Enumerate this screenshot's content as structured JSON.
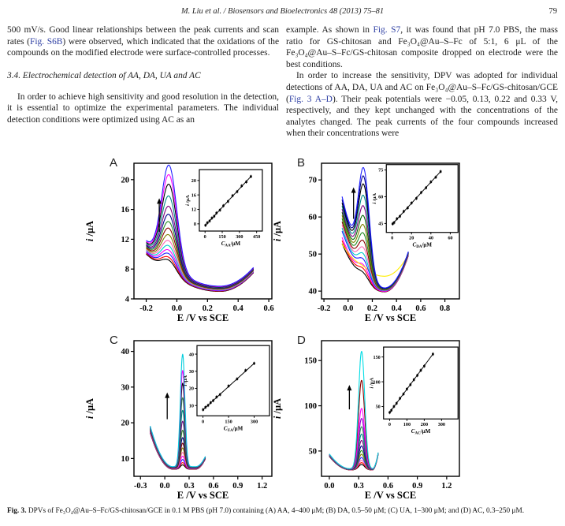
{
  "theme": {
    "link_color": "#2e3fa3",
    "text_color": "#1c1c1c"
  },
  "header": {
    "citation": "M. Liu et al. / Biosensors and Bioelectronics 48 (2013) 75–81",
    "page_number": "79"
  },
  "columns": {
    "left": {
      "para1_segments": [
        {
          "t": "500 mV/s. Good linear relationships between the peak currents and scan rates ("
        },
        {
          "t": "Fig. S6B",
          "link": true
        },
        {
          "t": ") were observed, which indicated that the oxidations of the compounds on the modified electrode were surface-controlled processes."
        }
      ],
      "section_heading": "3.4. Electrochemical detection of AA, DA, UA and AC",
      "para2_segments": [
        {
          "t": "In order to achieve high sensitivity and good resolution in the detection, it is essential to optimize the experimental parameters. The individual detection conditions were optimized using AC as an"
        }
      ]
    },
    "right": {
      "para1_segments": [
        {
          "t": "example. As shown in "
        },
        {
          "t": "Fig. S7",
          "link": true
        },
        {
          "t": ", it was found that pH 7.0 PBS, the mass ratio for GS-chitosan and Fe₃O₄@Au–S–Fc of 5:1, 6 μL of the Fe₃O₄@Au–S–Fc/GS-chitosan composite dropped on electrode were the best conditions."
        }
      ],
      "para2_segments": [
        {
          "t": "In order to increase the sensitivity, DPV was adopted for individual detections of AA, DA, UA and AC on Fe₃O₄@Au–S–Fc/GS-chitosan/GCE ("
        },
        {
          "t": "Fig. 3 A–D",
          "link": true
        },
        {
          "t": "). Their peak potentials were −0.05, 0.13, 0.22 and 0.33 V, respectively, and they kept unchanged with the concentrations of the analytes changed. The peak currents of the four compounds increased when their concentrations were"
        }
      ]
    }
  },
  "figure": {
    "caption_label": "Fig. 3.",
    "caption_text": " DPVs of Fe₃O₄@Au–S–Fc/GS-chitosan/GCE in 0.1 M PBS (pH 7.0) containing (A) AA, 4–400 μM; (B) DA, 0.5–50 μM; (C) UA, 1–300 μM; and (D) AC, 0.3–250 μM."
  },
  "chart_data": [
    {
      "type": "line",
      "panel": "A",
      "analyte": "AA",
      "title": "DPV of AA 4–400 μM",
      "xlabel": "E /V vs SCE",
      "ylabel_main": "i",
      "ylabel_rest": " /μA",
      "x_range": [
        -0.28,
        0.62
      ],
      "y_range": [
        4,
        22.2
      ],
      "x_ticks": [
        -0.2,
        0.0,
        0.2,
        0.4,
        0.6
      ],
      "x_tick_labels": [
        "-0.2",
        "0.0",
        "0.2",
        "0.4",
        "0.6"
      ],
      "y_ticks": [
        4,
        8,
        12,
        16,
        20
      ],
      "y_tick_labels": [
        "4",
        "8",
        "12",
        "16",
        "20"
      ],
      "peak_potential_V": -0.05,
      "peak_sigma": 0.05,
      "curve_E_range": [
        -0.2,
        0.5
      ],
      "baseline": {
        "valley_E": 0.28,
        "valley_i": 5.0,
        "valley_step": 0.05,
        "left_coef": 21.7,
        "left_spread": 0.2,
        "right_start_E": 0.28,
        "right_coef": 52
      },
      "curves": [
        {
          "amp": 1.8,
          "color": "#000000"
        },
        {
          "amp": 2.1,
          "color": "#ff0000"
        },
        {
          "amp": 2.5,
          "color": "#1e1eff"
        },
        {
          "amp": 2.9,
          "color": "#ff00ff"
        },
        {
          "amp": 3.4,
          "color": "#00cccc"
        },
        {
          "amp": 4.0,
          "color": "#ff69b4"
        },
        {
          "amp": 4.7,
          "color": "#808000"
        },
        {
          "amp": 5.5,
          "color": "#8b0000"
        },
        {
          "amp": 6.3,
          "color": "#228b22"
        },
        {
          "amp": 7.2,
          "color": "#00008b"
        },
        {
          "amp": 8.2,
          "color": "#800080"
        },
        {
          "amp": 9.5,
          "color": "#008b8b"
        },
        {
          "amp": 11.0,
          "color": "#000000"
        },
        {
          "amp": 12.2,
          "color": "#ff00ff"
        },
        {
          "amp": 13.4,
          "color": "#2222ff"
        }
      ],
      "arrow": {
        "E": -0.115,
        "i_from": 13.0,
        "i_to": 17.5
      },
      "inset": {
        "xlabel_sym": "C",
        "xlabel_sub": "AA",
        "xlabel_unit": "/μM",
        "ylabel_main": "i",
        "ylabel_rest": " /μA",
        "x_range": [
          -50,
          500
        ],
        "y_range": [
          6,
          23
        ],
        "x_ticks": [
          0,
          150,
          300,
          450
        ],
        "x_tick_labels": [
          "0",
          "150",
          "300",
          "450"
        ],
        "y_ticks": [
          8,
          12,
          16,
          20
        ],
        "y_tick_labels": [
          "8",
          "12",
          "16",
          "20"
        ],
        "points_x": [
          4,
          20,
          40,
          60,
          80,
          100,
          130,
          160,
          200,
          240,
          280,
          320,
          360,
          400
        ],
        "points_y": [
          7.6,
          8.3,
          8.8,
          9.6,
          10.1,
          11.0,
          11.8,
          13.0,
          14.2,
          15.8,
          16.9,
          18.5,
          19.6,
          21.1
        ],
        "box": [
          0.474,
          0.047,
          0.457,
          0.453
        ]
      }
    },
    {
      "type": "line",
      "panel": "B",
      "analyte": "DA",
      "title": "DPV of DA 0.5–50 μM",
      "xlabel": "E /V vs SCE",
      "ylabel_main": "i",
      "ylabel_rest": " /μA",
      "x_range": [
        -0.22,
        0.92
      ],
      "y_range": [
        37.9,
        74.5
      ],
      "x_ticks": [
        -0.2,
        0.0,
        0.2,
        0.4,
        0.6,
        0.8
      ],
      "x_tick_labels": [
        "-0.2",
        "0.0",
        "0.2",
        "0.4",
        "0.6",
        "0.8"
      ],
      "y_ticks": [
        40,
        50,
        60,
        70
      ],
      "y_tick_labels": [
        "40",
        "50",
        "60",
        "70"
      ],
      "peak_potential_V": 0.13,
      "peak_sigma": 0.045,
      "curve_E_range": [
        -0.05,
        0.5
      ],
      "baseline": {
        "valley_E": 0.3,
        "valley_i": 39.8,
        "valley_step": 0.07,
        "left_coef": 106,
        "left_spread": 0.9,
        "right_start_E": 0.3,
        "right_coef": 250
      },
      "curves": [
        {
          "amp": 2.0,
          "color": "#000000"
        },
        {
          "amp": 2.8,
          "color": "#ff0000"
        },
        {
          "amp": 3.6,
          "color": "#ff00ff"
        },
        {
          "amp": 0.6,
          "color": "#ffee00",
          "valley_i": 43.8,
          "left_coef": 60,
          "right_coef": 150
        },
        {
          "amp": 4.6,
          "color": "#1e1eff"
        },
        {
          "amp": 5.8,
          "color": "#00cccc"
        },
        {
          "amp": 7.2,
          "color": "#ff69b4"
        },
        {
          "amp": 8.8,
          "color": "#8b0000"
        },
        {
          "amp": 10.6,
          "color": "#228b22"
        },
        {
          "amp": 12.6,
          "color": "#808000"
        },
        {
          "amp": 14.8,
          "color": "#006400"
        },
        {
          "amp": 17.2,
          "color": "#800080"
        },
        {
          "amp": 19.8,
          "color": "#008b8b"
        },
        {
          "amp": 22.6,
          "color": "#000000"
        },
        {
          "amp": 24.5,
          "color": "#00008b"
        },
        {
          "amp": 26.5,
          "color": "#1e1eff"
        }
      ],
      "arrow": {
        "E": 0.045,
        "i_from": 59.5,
        "i_to": 68.0
      },
      "inset": {
        "xlabel_sym": "C",
        "xlabel_sub": "DA",
        "xlabel_unit": "/μM",
        "ylabel_main": "i",
        "ylabel_rest": " /μA",
        "x_range": [
          -6,
          68
        ],
        "y_range": [
          40,
          78
        ],
        "x_ticks": [
          0,
          20,
          40,
          60
        ],
        "x_tick_labels": [
          "0",
          "20",
          "40",
          "60"
        ],
        "y_ticks": [
          45,
          60,
          75
        ],
        "y_tick_labels": [
          "45",
          "60",
          "75"
        ],
        "points_x": [
          0.5,
          2,
          5,
          8,
          12,
          16,
          20,
          25,
          30,
          35,
          40,
          45,
          50
        ],
        "points_y": [
          44.8,
          45.5,
          47.7,
          49.0,
          51.8,
          53.7,
          56.5,
          59.1,
          62.4,
          65.0,
          68.3,
          70.9,
          74.1
        ],
        "box": [
          0.47,
          0.01,
          0.52,
          0.5
        ]
      }
    },
    {
      "type": "line",
      "panel": "C",
      "analyte": "UA",
      "title": "DPV of UA 1–300 μM",
      "xlabel": "E /V vs SCE",
      "ylabel_main": "i",
      "ylabel_rest": " /μA",
      "x_range": [
        -0.38,
        1.32
      ],
      "y_range": [
        5,
        43
      ],
      "x_ticks": [
        -0.3,
        0.0,
        0.3,
        0.6,
        0.9,
        1.2
      ],
      "x_tick_labels": [
        "-0.3",
        "0.0",
        "0.3",
        "0.6",
        "0.9",
        "1.2"
      ],
      "y_ticks": [
        10,
        20,
        30,
        40
      ],
      "y_tick_labels": [
        "10",
        "20",
        "30",
        "40"
      ],
      "peak_potential_V": 0.22,
      "peak_sigma": 0.028,
      "curve_E_range": [
        -0.18,
        0.5
      ],
      "baseline": {
        "valley_E": 0.1,
        "valley_i": 7.0,
        "valley_step": 0.05,
        "left_coef": 130,
        "left_spread": 0.12,
        "right_start_E": 0.38,
        "right_coef": 200
      },
      "curves": [
        {
          "amp": 1.2,
          "color": "#000000"
        },
        {
          "amp": 1.8,
          "color": "#ff0000"
        },
        {
          "amp": 2.6,
          "color": "#1e1eff"
        },
        {
          "amp": 3.5,
          "color": "#ff00ff"
        },
        {
          "amp": 4.5,
          "color": "#ff69b4"
        },
        {
          "amp": 5.7,
          "color": "#808000"
        },
        {
          "amp": 7.0,
          "color": "#8b0000"
        },
        {
          "amp": 8.5,
          "color": "#00008b"
        },
        {
          "amp": 10.5,
          "color": "#228b22"
        },
        {
          "amp": 13.0,
          "color": "#800080"
        },
        {
          "amp": 16.0,
          "color": "#008b8b"
        },
        {
          "amp": 19.5,
          "color": "#2e8b57"
        },
        {
          "amp": 23.5,
          "color": "#000000"
        },
        {
          "amp": 27.0,
          "color": "#ff00ff"
        },
        {
          "amp": 31.5,
          "color": "#00cddd"
        }
      ],
      "arrow": {
        "E": 0.03,
        "i_from": 21.0,
        "i_to": 28.5
      },
      "inset": {
        "xlabel_sym": "C",
        "xlabel_sub": "UA",
        "xlabel_unit": "/μM",
        "ylabel_main": "i",
        "ylabel_rest": " /μA",
        "x_range": [
          -35,
          390
        ],
        "y_range": [
          4,
          45
        ],
        "x_ticks": [
          0,
          150,
          300
        ],
        "x_tick_labels": [
          "0",
          "150",
          "300"
        ],
        "y_ticks": [
          10,
          20,
          30,
          40
        ],
        "y_tick_labels": [
          "10",
          "20",
          "30",
          "40"
        ],
        "points_x": [
          1,
          15,
          30,
          45,
          60,
          80,
          100,
          150,
          200,
          250,
          300
        ],
        "points_y": [
          7.6,
          9.0,
          10.1,
          11.7,
          12.9,
          15.0,
          16.4,
          21.4,
          25.5,
          30.5,
          34.6
        ],
        "box": [
          0.457,
          0.036,
          0.526,
          0.518
        ]
      }
    },
    {
      "type": "line",
      "panel": "D",
      "analyte": "AC",
      "title": "DPV of AC 0.3–250 μM",
      "xlabel": "E /V vs SCE",
      "ylabel_main": "i",
      "ylabel_rest": " /μA",
      "x_range": [
        -0.08,
        1.33
      ],
      "y_range": [
        22,
        172
      ],
      "x_ticks": [
        0.0,
        0.3,
        0.6,
        0.9,
        1.2
      ],
      "x_tick_labels": [
        "0.0",
        "0.3",
        "0.6",
        "0.9",
        "1.2"
      ],
      "y_ticks": [
        50,
        100,
        150
      ],
      "y_tick_labels": [
        "50",
        "100",
        "150"
      ],
      "peak_potential_V": 0.33,
      "peak_sigma": 0.032,
      "curve_E_range": [
        0.0,
        0.5
      ],
      "baseline": {
        "valley_E": 0.22,
        "valley_i": 29.0,
        "valley_step": 0.1,
        "left_coef": 310,
        "left_spread": 0.1,
        "right_start_E": 0.44,
        "right_coef": 5000
      },
      "curves": [
        {
          "amp": 6,
          "color": "#000000"
        },
        {
          "amp": 8,
          "color": "#ff0000"
        },
        {
          "amp": 10.5,
          "color": "#ff69b4"
        },
        {
          "amp": 13.5,
          "color": "#1e1eff"
        },
        {
          "amp": 17,
          "color": "#808000"
        },
        {
          "amp": 21,
          "color": "#228b22"
        },
        {
          "amp": 26,
          "color": "#00008b"
        },
        {
          "amp": 32,
          "color": "#800080"
        },
        {
          "amp": 39,
          "color": "#008b8b"
        },
        {
          "amp": 47,
          "color": "#2e8b57"
        },
        {
          "amp": 56,
          "color": "#9400d3"
        },
        {
          "amp": 67,
          "color": "#ff00ff"
        },
        {
          "amp": 98,
          "color": "#8b0000"
        },
        {
          "amp": 130,
          "color": "#00dde5"
        }
      ],
      "arrow": {
        "E": 0.205,
        "i_from": 96,
        "i_to": 123
      },
      "inset": {
        "xlabel_sym": "C",
        "xlabel_sub": "AC",
        "xlabel_unit": "/μM",
        "ylabel_main": "i",
        "ylabel_rest": " /μA",
        "x_range": [
          -35,
          395
        ],
        "y_range": [
          25,
          170
        ],
        "x_ticks": [
          0,
          100,
          200,
          300
        ],
        "x_tick_labels": [
          "0",
          "100",
          "200",
          "300"
        ],
        "y_ticks": [
          50,
          100,
          150
        ],
        "y_tick_labels": [
          "50",
          "100",
          "150"
        ],
        "points_x": [
          0.3,
          10,
          25,
          40,
          60,
          80,
          100,
          120,
          140,
          160,
          180,
          200,
          250
        ],
        "points_y": [
          38.1,
          42.4,
          50.1,
          56.5,
          66.6,
          75.2,
          85.4,
          94.0,
          104.2,
          112.8,
          123.0,
          131.6,
          155.8
        ],
        "box": [
          0.45,
          0.047,
          0.54,
          0.53
        ]
      }
    }
  ]
}
